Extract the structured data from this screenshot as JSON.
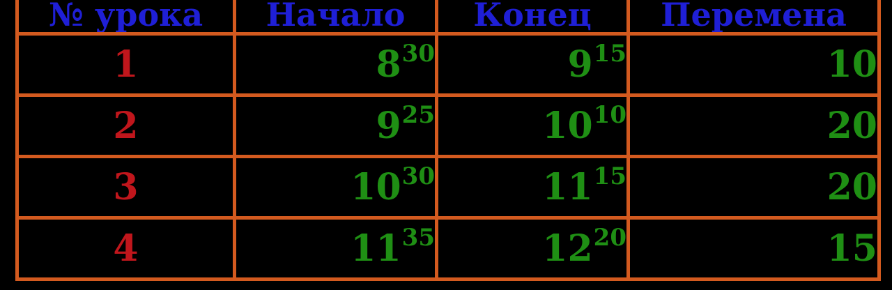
{
  "table": {
    "headers": [
      "№ урока",
      "Начало",
      "Конец",
      "Перемена"
    ],
    "rows": [
      {
        "lesson": "1",
        "start_h": "8",
        "start_m": "30",
        "end_h": "9",
        "end_m": "15",
        "break": "10"
      },
      {
        "lesson": "2",
        "start_h": "9",
        "start_m": "25",
        "end_h": "10",
        "end_m": "10",
        "break": "20"
      },
      {
        "lesson": "3",
        "start_h": "10",
        "start_m": "30",
        "end_h": "11",
        "end_m": "15",
        "break": "20"
      },
      {
        "lesson": "4",
        "start_h": "11",
        "start_m": "35",
        "end_h": "12",
        "end_m": "20",
        "break": "15"
      }
    ]
  },
  "colors": {
    "background": "#000000",
    "grid": "#d35a1f",
    "header_text": "#1f1fd6",
    "lesson_number": "#c0161c",
    "time_text": "#1f8f14"
  }
}
